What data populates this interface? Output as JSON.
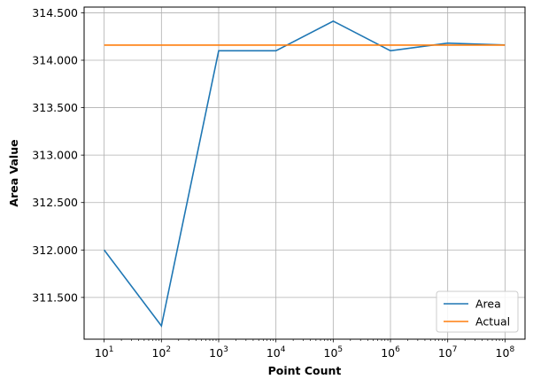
{
  "chart_data": {
    "type": "line",
    "title": "",
    "xlabel": "Point Count",
    "ylabel": "Area Value",
    "x_scale": "log",
    "x": [
      10,
      100,
      1000,
      10000,
      100000,
      1000000,
      10000000,
      100000000
    ],
    "x_tick_labels": [
      {
        "base": "10",
        "exp": "1"
      },
      {
        "base": "10",
        "exp": "2"
      },
      {
        "base": "10",
        "exp": "3"
      },
      {
        "base": "10",
        "exp": "4"
      },
      {
        "base": "10",
        "exp": "5"
      },
      {
        "base": "10",
        "exp": "6"
      },
      {
        "base": "10",
        "exp": "7"
      },
      {
        "base": "10",
        "exp": "8"
      }
    ],
    "y_ticks": [
      311.5,
      312.0,
      312.5,
      313.0,
      313.5,
      314.0,
      314.5
    ],
    "y_tick_labels": [
      "311.500",
      "312.000",
      "312.500",
      "313.000",
      "313.500",
      "314.000",
      "314.500"
    ],
    "ylim": [
      311.06,
      314.56
    ],
    "grid": true,
    "legend_position": "bottom-right",
    "series": [
      {
        "name": "Area",
        "color": "#1f77b4",
        "values": [
          312.0,
          311.2,
          314.1,
          314.1,
          314.412,
          314.1,
          314.18,
          314.16
        ]
      },
      {
        "name": "Actual",
        "color": "#ff7f0e",
        "values": [
          314.159,
          314.159,
          314.159,
          314.159,
          314.159,
          314.159,
          314.159,
          314.159
        ]
      }
    ]
  }
}
